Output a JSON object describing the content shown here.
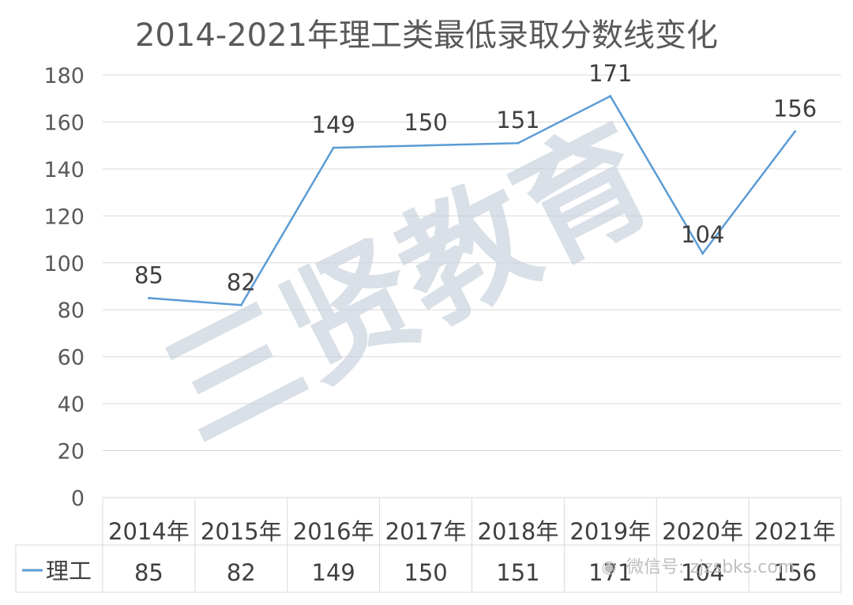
{
  "chart_data": {
    "type": "line",
    "title": "2014-2021年理工类最低录取分数线变化",
    "categories": [
      "2014年",
      "2015年",
      "2016年",
      "2017年",
      "2018年",
      "2019年",
      "2020年",
      "2021年"
    ],
    "series": [
      {
        "name": "理工",
        "values": [
          85,
          82,
          149,
          150,
          151,
          171,
          104,
          156
        ]
      }
    ],
    "ylim": [
      0,
      180
    ],
    "yticks": [
      0,
      20,
      40,
      60,
      80,
      100,
      120,
      140,
      160,
      180
    ],
    "grid": true,
    "legend": "data-table",
    "data_table": true,
    "colors": {
      "line": "#5b9bd5",
      "grid": "#d9d9d9",
      "text": "#595959"
    }
  },
  "watermark": {
    "main": "三贤教育",
    "wechat": "微信号: zjzsbks.com",
    "wechat_icon": "wechat-icon"
  }
}
